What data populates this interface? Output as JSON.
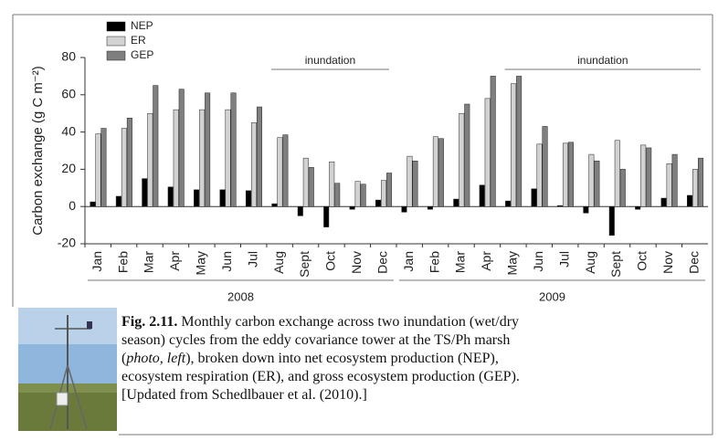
{
  "chart_data": {
    "type": "bar",
    "y_label": "Carbon exchange (g C m⁻²)",
    "categories": [
      "Jan",
      "Feb",
      "Mar",
      "Apr",
      "May",
      "Jun",
      "Jul",
      "Aug",
      "Sept",
      "Oct",
      "Nov",
      "Dec",
      "Jan",
      "Feb",
      "Mar",
      "Apr",
      "May",
      "Jun",
      "Jul",
      "Aug",
      "Sept",
      "Oct",
      "Nov",
      "Dec"
    ],
    "series": [
      {
        "name": "NEP",
        "color": "#000000",
        "values": [
          2.5,
          5.5,
          15,
          10.5,
          9,
          9,
          8.5,
          1.5,
          -5,
          -11,
          -1.5,
          3.5,
          -3,
          -1.5,
          4,
          11.5,
          3,
          9.5,
          0.5,
          -3.5,
          -15.5,
          -1.5,
          4.5,
          6
        ]
      },
      {
        "name": "ER",
        "color": "#d2d2d2",
        "values": [
          39,
          42,
          50,
          52,
          52,
          52,
          45,
          37,
          26,
          24,
          13.5,
          14,
          27,
          37.5,
          50,
          58,
          66,
          33.5,
          34,
          28,
          35.5,
          33,
          23,
          20
        ]
      },
      {
        "name": "GEP",
        "color": "#7f7f7f",
        "values": [
          42,
          47.5,
          65,
          63,
          61,
          61,
          53.5,
          38.5,
          21,
          12.5,
          12,
          18,
          24.5,
          36.5,
          55,
          70,
          70,
          43,
          34.5,
          24.5,
          20,
          31.5,
          28,
          26
        ]
      }
    ],
    "ylim": [
      -20,
      80
    ],
    "yticks": [
      -20,
      0,
      20,
      40,
      60,
      80
    ],
    "legend": "upper left",
    "annotations": [
      "inundation",
      "inundation"
    ],
    "year_labels": [
      "2008",
      "2009"
    ]
  },
  "caption": {
    "label": "Fig. 2.11.",
    "lines": [
      "Monthly carbon exchange across two inundation (wet/dry",
      "season) cycles from the eddy covariance tower at the TS/Ph marsh",
      [
        "(",
        "photo, left",
        "), broken down into net ecosystem production (NEP),"
      ],
      "ecosystem respiration (ER),  and gross ecosystem production (GEP).",
      "[Updated from Schedlbauer et al. (2010).]"
    ]
  }
}
